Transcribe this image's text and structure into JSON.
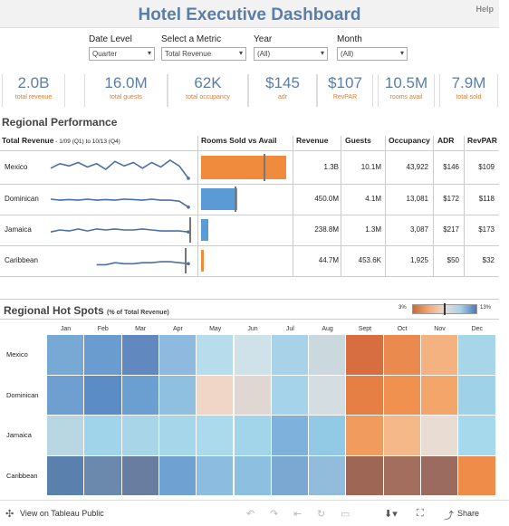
{
  "header": {
    "title": "Hotel Executive Dashboard",
    "help_label": "Help"
  },
  "filters": [
    {
      "label": "Date Level",
      "value": "Quarter"
    },
    {
      "label": "Select a Metric",
      "value": "Total Revenue"
    },
    {
      "label": "Year",
      "value": "(All)"
    },
    {
      "label": "Month",
      "value": "(All)"
    }
  ],
  "kpis": [
    {
      "value": "2.0B",
      "label": "total revenue"
    },
    {
      "value": "16.0M",
      "label": "total guests"
    },
    {
      "value": "62K",
      "label": "total occupancy"
    },
    {
      "value": "$145",
      "label": "adr"
    },
    {
      "value": "$107",
      "label": "RevPAR"
    },
    {
      "value": "10.5M",
      "label": "rooms avail"
    },
    {
      "value": "7.9M",
      "label": "total sold"
    }
  ],
  "regional": {
    "title": "Regional Performance",
    "trend_title": "Total Revenue",
    "trend_range": " - 1/09 (Q1) to 10/13 (Q4)",
    "columns": {
      "rooms": "Rooms Sold vs Avail",
      "revenue": "Revenue",
      "guests": "Guests",
      "occupancy": "Occupancy",
      "adr": "ADR",
      "revpar": "RevPAR"
    },
    "rows": [
      {
        "region": "Mexico",
        "revenue": "1.3B",
        "guests": "10.1M",
        "occupancy": "43,922",
        "adr": "$146",
        "revpar": "$109",
        "rooms_sold_pct": 0.72,
        "bar_color": "#f08a3c",
        "trend": [
          0.55,
          0.35,
          0.45,
          0.3,
          0.5,
          0.35,
          0.6,
          0.25,
          0.45,
          0.3,
          0.55,
          0.3,
          0.5,
          0.2,
          0.45,
          1.0
        ]
      },
      {
        "region": "Dominican",
        "revenue": "450.0M",
        "guests": "4.1M",
        "occupancy": "13,081",
        "adr": "$172",
        "revpar": "$118",
        "rooms_sold_pct": 0.31,
        "bar_color": "#5b9bd5",
        "trend": [
          0.5,
          0.55,
          0.52,
          0.55,
          0.5,
          0.55,
          0.52,
          0.55,
          0.5,
          0.52,
          0.55,
          0.5,
          0.55,
          0.55,
          0.6,
          0.9
        ]
      },
      {
        "region": "Jamaica",
        "revenue": "238.8M",
        "guests": "1.3M",
        "occupancy": "3,087",
        "adr": "$217",
        "revpar": "$173",
        "rooms_sold_pct": 0.06,
        "bar_color": "#5b9bd5",
        "trend": [
          0.6,
          0.5,
          0.55,
          0.45,
          0.55,
          0.45,
          0.5,
          0.45,
          0.5,
          0.5,
          0.45,
          0.5,
          0.55,
          0.55,
          0.55,
          0.6
        ]
      },
      {
        "region": "Caribbean",
        "revenue": "44.7M",
        "guests": "453.6K",
        "occupancy": "1,925",
        "adr": "$50",
        "revpar": "$32",
        "rooms_sold_pct": 0.02,
        "bar_color": "#f08a3c",
        "trend": [
          null,
          null,
          null,
          null,
          null,
          0.7,
          0.7,
          0.6,
          0.65,
          0.65,
          0.6,
          0.6,
          0.55,
          0.55,
          0.6,
          0.65
        ]
      }
    ]
  },
  "hotspots": {
    "title": "Regional Hot Spots",
    "subtitle": "(% of Total Revenue)",
    "legend_min": "3%",
    "legend_max": "13%",
    "months": [
      "Jan",
      "Feb",
      "Mar",
      "Apr",
      "May",
      "Jun",
      "Jul",
      "Aug",
      "Sept",
      "Oct",
      "Nov",
      "Dec"
    ],
    "rows": [
      {
        "region": "Mexico",
        "colors": [
          "#78a8d4",
          "#6b9ccf",
          "#6189c0",
          "#8fbadf",
          "#b7dcec",
          "#cfe2ea",
          "#a8d2e8",
          "#cbd8de",
          "#d66e41",
          "#ea8a4e",
          "#f5b281",
          "#a7d6e9"
        ]
      },
      {
        "region": "Dominican",
        "colors": [
          "#6f9fd0",
          "#5b8cc6",
          "#6b9fd1",
          "#90c0e0",
          "#f0d6c6",
          "#e0d7d3",
          "#a5d3ea",
          "#d4dde2",
          "#e57f44",
          "#f0914f",
          "#f3a56a",
          "#9fd2e8"
        ]
      },
      {
        "region": "Jamaica",
        "colors": [
          "#b8d7e2",
          "#a0d4ea",
          "#a8d5e8",
          "#a6d6ea",
          "#aadaeb",
          "#a2d5ea",
          "#7eb1dc",
          "#92c9e5",
          "#f29b5f",
          "#f5b889",
          "#e9ddd3",
          "#a7d9ed"
        ]
      },
      {
        "region": "Caribbean",
        "colors": [
          "#5a80ae",
          "#6b88ad",
          "#687d9f",
          "#6fa1d3",
          "#8cbde0",
          "#8dbfe0",
          "#7ba8d3",
          "#93bbdb",
          "#9e6654",
          "#a36e5d",
          "#9b6b60",
          "#ef8c49"
        ]
      }
    ]
  },
  "footer": {
    "view_label": "View on Tableau Public",
    "share_label": "Share"
  }
}
